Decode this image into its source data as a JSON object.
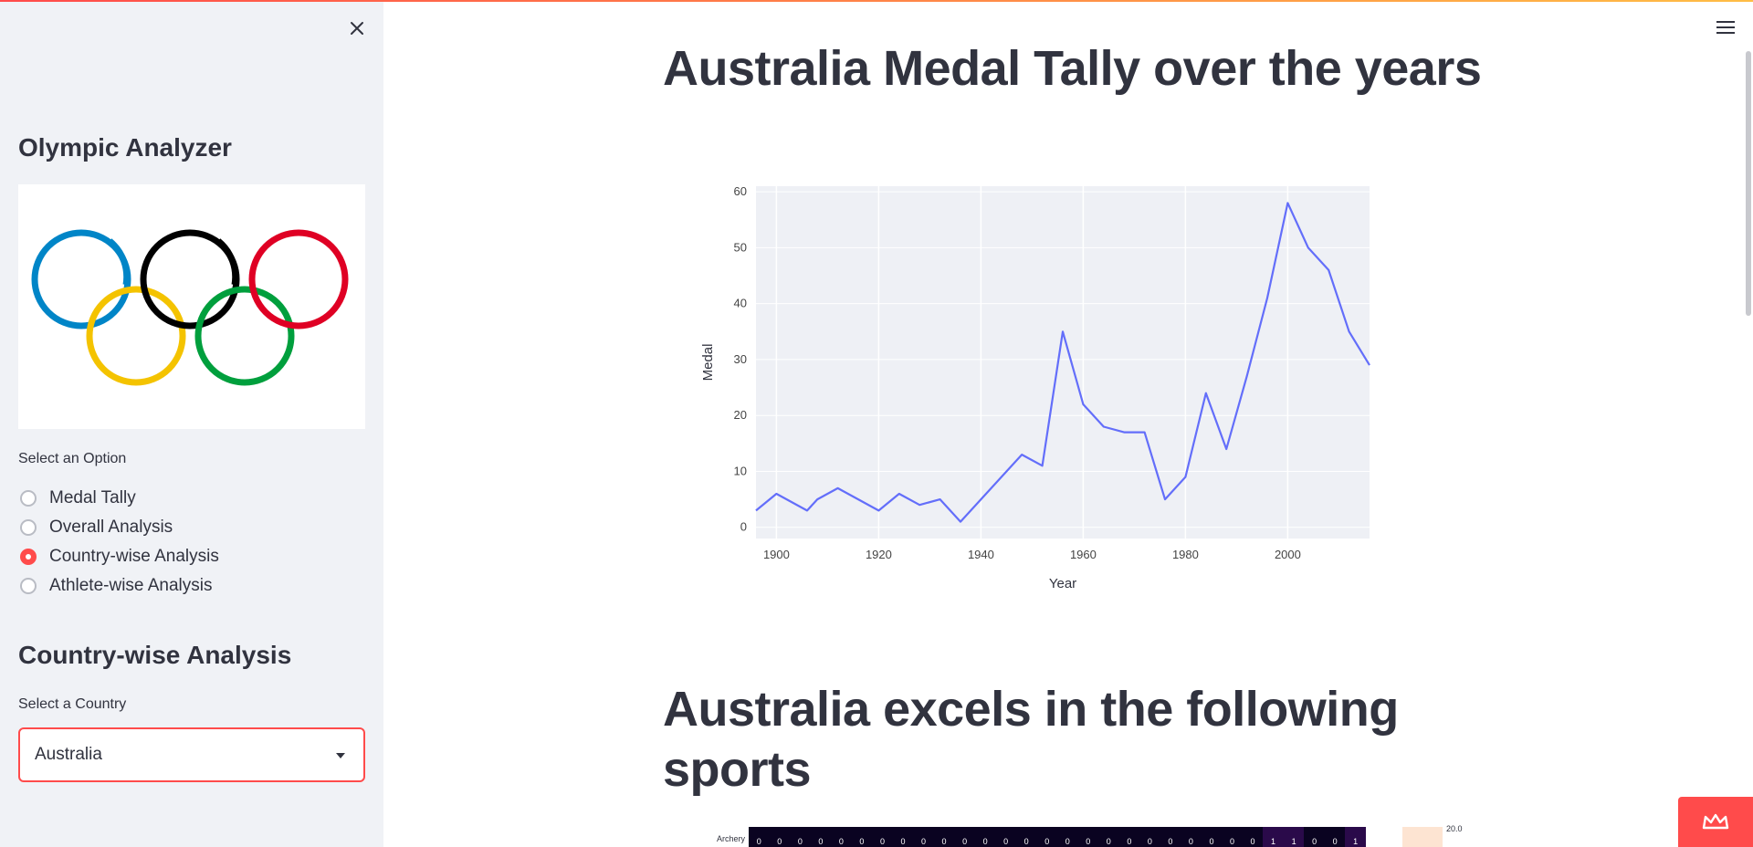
{
  "sidebar": {
    "title": "Olympic Analyzer",
    "radio_label": "Select an Option",
    "options": [
      {
        "label": "Medal Tally",
        "selected": false
      },
      {
        "label": "Overall Analysis",
        "selected": false
      },
      {
        "label": "Country-wise Analysis",
        "selected": true
      },
      {
        "label": "Athlete-wise Analysis",
        "selected": false
      }
    ],
    "section_heading": "Country-wise Analysis",
    "country_label": "Select a Country",
    "country_value": "Australia"
  },
  "main": {
    "title": "Australia Medal Tally over the years",
    "title2": "Australia excels in the following sports",
    "heatmap_first_row_label": "Archery",
    "heatmap_first_row_values": [
      "0",
      "0",
      "0",
      "0",
      "0",
      "0",
      "0",
      "0",
      "0",
      "0",
      "0",
      "0",
      "0",
      "0",
      "0",
      "0",
      "0",
      "0",
      "0",
      "0",
      "0",
      "0",
      "0",
      "0",
      "0",
      "1",
      "1",
      "0",
      "0",
      "1"
    ],
    "colorbar_top_label": "20.0"
  },
  "colors": {
    "accent": "#ff4b4b",
    "line": "#636efa",
    "plot_bg": "#eef0f5",
    "sidebar_bg": "#f0f2f6",
    "ring_blue": "#0085c7",
    "ring_yellow": "#f4c300",
    "ring_black": "#000000",
    "ring_green": "#009f3d",
    "ring_red": "#df0024"
  },
  "icons": {
    "close": "close-icon",
    "menu": "hamburger-menu-icon",
    "caret": "chevron-down-icon",
    "crown": "streamlit-crown-icon"
  },
  "chart_data": {
    "type": "line",
    "xlabel": "Year",
    "ylabel": "Medal",
    "xlim": [
      1896,
      2016
    ],
    "ylim": [
      -2,
      61
    ],
    "x_ticks": [
      1900,
      1920,
      1940,
      1960,
      1980,
      2000
    ],
    "y_ticks": [
      0,
      10,
      20,
      30,
      40,
      50,
      60
    ],
    "grid": true,
    "x": [
      1896,
      1900,
      1906,
      1908,
      1912,
      1920,
      1924,
      1928,
      1932,
      1936,
      1948,
      1952,
      1956,
      1960,
      1964,
      1968,
      1972,
      1976,
      1980,
      1984,
      1988,
      1992,
      1996,
      2000,
      2004,
      2008,
      2012,
      2016
    ],
    "values": [
      3,
      6,
      3,
      5,
      7,
      3,
      6,
      4,
      5,
      1,
      13,
      11,
      35,
      22,
      18,
      17,
      17,
      5,
      9,
      24,
      14,
      27,
      41,
      58,
      50,
      46,
      35,
      29
    ]
  }
}
